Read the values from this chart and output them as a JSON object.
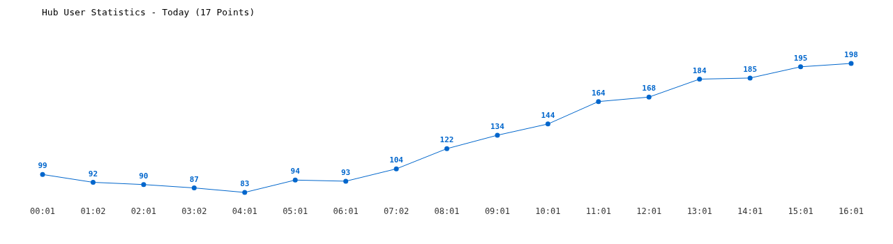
{
  "chart_data": {
    "type": "line",
    "title": "Hub User Statistics - Today (17 Points)",
    "categories": [
      "00:01",
      "01:02",
      "02:01",
      "03:02",
      "04:01",
      "05:01",
      "06:01",
      "07:02",
      "08:01",
      "09:01",
      "10:01",
      "11:01",
      "12:01",
      "13:01",
      "14:01",
      "15:01",
      "16:01"
    ],
    "series": [
      {
        "color": "#0066cc",
        "values": [
          99,
          92,
          90,
          87,
          83,
          94,
          93,
          104,
          122,
          134,
          144,
          164,
          168,
          184,
          185,
          195,
          198
        ]
      }
    ],
    "data_labels": true,
    "marker": "circle",
    "grid": false
  }
}
